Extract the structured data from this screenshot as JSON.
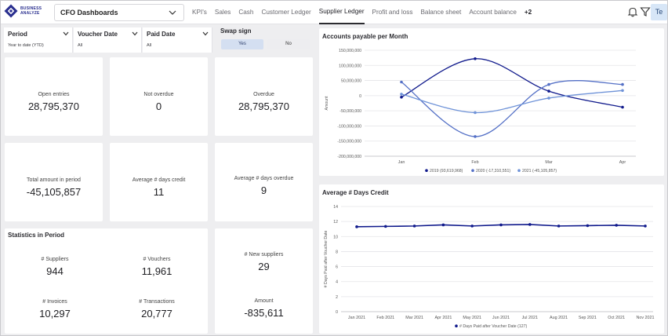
{
  "app": {
    "logo_line1": "BUSINESS",
    "logo_line2": "ANALYZE",
    "dashboard_select": "CFO Dashboards"
  },
  "tabs": [
    {
      "label": "KPI's"
    },
    {
      "label": "Sales"
    },
    {
      "label": "Cash"
    },
    {
      "label": "Customer Ledger"
    },
    {
      "label": "Supplier Ledger",
      "active": true
    },
    {
      "label": "Profit and loss"
    },
    {
      "label": "Balance sheet"
    },
    {
      "label": "Account balance"
    },
    {
      "label": "+2"
    }
  ],
  "header_icons": {
    "notifications": "bell-icon",
    "filter": "filter-icon",
    "user_initials": "Te"
  },
  "filters": [
    {
      "title": "Period",
      "value": "Year to date (YTD)"
    },
    {
      "title": "Voucher Date",
      "value": "All"
    },
    {
      "title": "Paid Date",
      "value": "All"
    }
  ],
  "swap_sign": {
    "title": "Swap sign",
    "yes": "Yes",
    "no": "No",
    "selected": "Yes"
  },
  "kpis": {
    "open_entries": {
      "label": "Open entries",
      "value": "28,795,370"
    },
    "not_overdue": {
      "label": "Not overdue",
      "value": "0"
    },
    "overdue": {
      "label": "Overdue",
      "value": "28,795,370"
    },
    "total_amount": {
      "label": "Total amount in period",
      "value": "-45,105,857"
    },
    "avg_days_credit": {
      "label": "Average # days credit",
      "value": "11"
    },
    "avg_days_overdue": {
      "label": "Average # days overdue",
      "value": "9"
    }
  },
  "statistics": {
    "title": "Statistics in Period",
    "suppliers": {
      "label": "# Suppliers",
      "value": "944"
    },
    "vouchers": {
      "label": "# Vouchers",
      "value": "11,961"
    },
    "invoices": {
      "label": "# Invoices",
      "value": "10,297"
    },
    "transactions": {
      "label": "# Transactions",
      "value": "20,777"
    }
  },
  "new_suppliers": {
    "new": {
      "label": "# New suppliers",
      "value": "29"
    },
    "amount": {
      "label": "Amount",
      "value": "-835,611"
    }
  },
  "colors": {
    "series_2019": "#101a8c",
    "series_2020": "#5470c6",
    "series_2021": "#6f93d8",
    "active_tab": "#2b2b30"
  },
  "chart_data": [
    {
      "type": "line",
      "title": "Accounts payable per Month",
      "ylabel": "Amount",
      "xlabel": "",
      "categories": [
        "Jan",
        "Feb",
        "Mar",
        "Apr"
      ],
      "y_ticks": [
        "150,000,000",
        "100,000,000",
        "50,000,000",
        "0",
        "-50,000,000",
        "-100,000,000",
        "-150,000,000",
        "-200,000,000"
      ],
      "ylim": [
        -200000000,
        150000000
      ],
      "series": [
        {
          "name": "2019 (93,619,968)",
          "values": [
            -5000000,
            122000000,
            15000000,
            -38000000
          ]
        },
        {
          "name": "2020 (-17,310,551)",
          "values": [
            45000000,
            -135000000,
            37000000,
            37000000
          ]
        },
        {
          "name": "2021 (-45,105,857)",
          "values": [
            5000000,
            -56000000,
            -8000000,
            17000000
          ]
        }
      ],
      "legend_position": "bottom-center",
      "grid": true
    },
    {
      "type": "line",
      "title": "Average # Days Credit",
      "ylabel": "# Days Paid after Voucher Date",
      "xlabel": "",
      "categories": [
        "Jan 2021",
        "Feb 2021",
        "Mar 2021",
        "Apr 2021",
        "May 2021",
        "Jun 2021",
        "Jul 2021",
        "Aug 2021",
        "Sep 2021",
        "Oct 2021",
        "Nov 2021"
      ],
      "y_ticks": [
        "14",
        "12",
        "10",
        "8",
        "6",
        "4",
        "2",
        "0"
      ],
      "ylim": [
        0,
        14
      ],
      "series": [
        {
          "name": "# Days Paid after Voucher Date (127)",
          "values": [
            11.3,
            11.35,
            11.4,
            11.55,
            11.4,
            11.55,
            11.6,
            11.4,
            11.45,
            11.5,
            11.4
          ]
        }
      ],
      "legend_position": "bottom-center",
      "grid": true
    }
  ]
}
